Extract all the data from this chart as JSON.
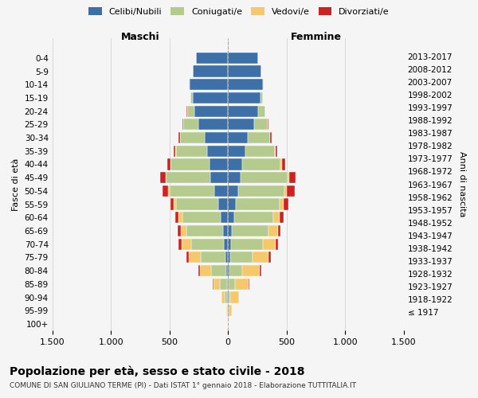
{
  "age_groups": [
    "100+",
    "95-99",
    "90-94",
    "85-89",
    "80-84",
    "75-79",
    "70-74",
    "65-69",
    "60-64",
    "55-59",
    "50-54",
    "45-49",
    "40-44",
    "35-39",
    "30-34",
    "25-29",
    "20-24",
    "15-19",
    "10-14",
    "5-9",
    "0-4"
  ],
  "birth_years": [
    "≤ 1917",
    "1918-1922",
    "1923-1927",
    "1928-1932",
    "1933-1937",
    "1938-1942",
    "1943-1947",
    "1948-1952",
    "1953-1957",
    "1958-1962",
    "1963-1967",
    "1968-1972",
    "1973-1977",
    "1978-1982",
    "1983-1987",
    "1988-1992",
    "1993-1997",
    "1998-2002",
    "2003-2007",
    "2008-2012",
    "2013-2017"
  ],
  "colors": {
    "celibi": "#3d6fa8",
    "coniugati": "#b5ca8d",
    "vedovi": "#f5c96b",
    "divorziati": "#cc2222"
  },
  "maschi": {
    "celibi": [
      2,
      3,
      5,
      8,
      15,
      25,
      35,
      45,
      60,
      85,
      120,
      150,
      160,
      175,
      200,
      250,
      290,
      300,
      330,
      300,
      270
    ],
    "coniugati": [
      0,
      5,
      25,
      60,
      130,
      210,
      280,
      310,
      330,
      360,
      380,
      380,
      330,
      270,
      210,
      130,
      60,
      20,
      5,
      2,
      0
    ],
    "vedovi": [
      0,
      8,
      25,
      55,
      95,
      100,
      80,
      50,
      30,
      20,
      10,
      5,
      3,
      2,
      1,
      1,
      0,
      0,
      0,
      0,
      0
    ],
    "divorziati": [
      0,
      0,
      2,
      5,
      10,
      20,
      30,
      25,
      30,
      25,
      50,
      45,
      25,
      20,
      10,
      5,
      2,
      1,
      0,
      0,
      0
    ]
  },
  "femmine": {
    "celibi": [
      2,
      3,
      5,
      8,
      12,
      18,
      25,
      35,
      50,
      70,
      90,
      110,
      120,
      150,
      170,
      220,
      260,
      280,
      300,
      285,
      260
    ],
    "coniugati": [
      0,
      3,
      15,
      50,
      110,
      190,
      270,
      310,
      335,
      370,
      390,
      400,
      330,
      250,
      190,
      120,
      55,
      15,
      3,
      1,
      0
    ],
    "vedovi": [
      5,
      25,
      75,
      120,
      150,
      140,
      110,
      80,
      55,
      35,
      25,
      15,
      8,
      4,
      2,
      1,
      0,
      0,
      0,
      0,
      0
    ],
    "divorziati": [
      0,
      0,
      2,
      5,
      10,
      15,
      25,
      20,
      35,
      40,
      65,
      55,
      30,
      15,
      8,
      3,
      2,
      1,
      0,
      0,
      0
    ]
  },
  "xlim": 1500,
  "title": "Popolazione per età, sesso e stato civile - 2018",
  "subtitle": "COMUNE DI SAN GIULIANO TERME (PI) - Dati ISTAT 1° gennaio 2018 - Elaborazione TUTTITALIA.IT",
  "ylabel": "Fasce di età",
  "ylabel2": "Anni di nascita",
  "xlabel_maschi": "Maschi",
  "xlabel_femmine": "Femmine",
  "xtick_labels": [
    "1.500",
    "1.000",
    "500",
    "0",
    "500",
    "1.000",
    "1.500"
  ],
  "xtick_values": [
    -1500,
    -1000,
    -500,
    0,
    500,
    1000,
    1500
  ],
  "background_color": "#f5f5f5",
  "grid_color": "#cccccc"
}
